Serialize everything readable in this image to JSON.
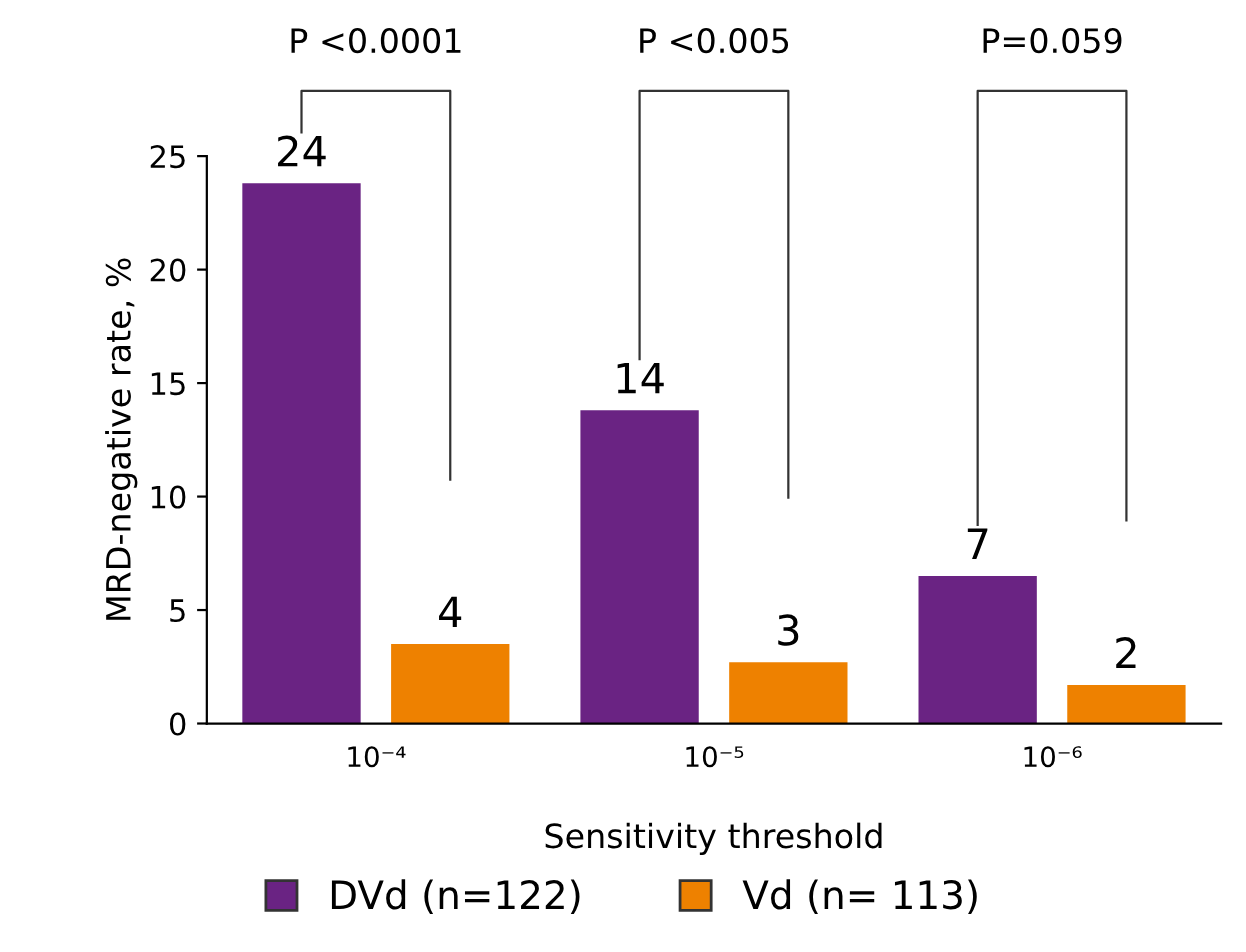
{
  "chart_data": {
    "type": "bar",
    "categories": [
      "10⁻⁴",
      "10⁻⁵",
      "10⁻⁶"
    ],
    "xlabel": "Sensitivity threshold",
    "ylabel": "MRD-negative rate, %",
    "series": [
      {
        "name": "DVd (n=122)",
        "color": "#6a2383",
        "values": [
          23.8,
          13.8,
          6.5
        ],
        "value_labels": [
          "24",
          "14",
          "7"
        ]
      },
      {
        "name": "Vd (n= 113)",
        "color": "#ee8100",
        "values": [
          3.5,
          2.7,
          1.7
        ],
        "value_labels": [
          "4",
          "3",
          "2"
        ]
      }
    ],
    "ylim": [
      0,
      25
    ],
    "yticks": [
      0,
      5,
      10,
      15,
      20,
      25
    ],
    "annotations": [
      "P <0.0001",
      "P <0.005",
      "P=0.059"
    ],
    "legend": "bottom",
    "grid": false
  }
}
